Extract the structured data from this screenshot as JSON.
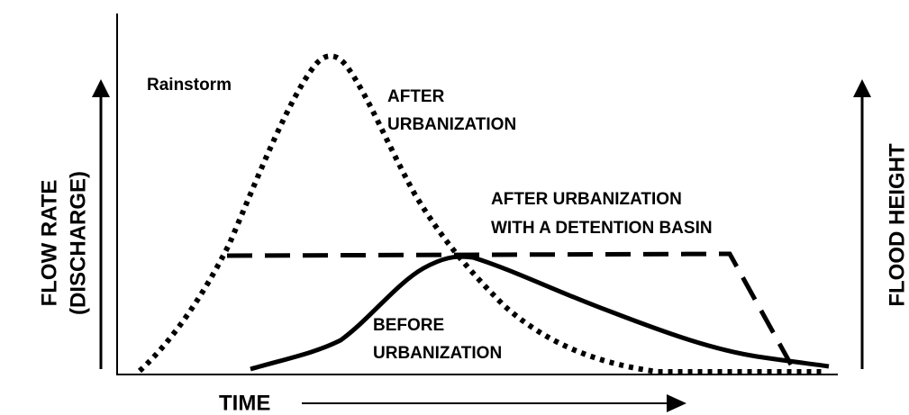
{
  "labels": {
    "rainstorm": "Rainstorm",
    "after_urbanization": [
      "AFTER",
      "URBANIZATION"
    ],
    "detention_basin": [
      "AFTER URBANIZATION",
      "WITH A DETENTION BASIN"
    ],
    "before_urbanization": [
      "BEFORE",
      "URBANIZATION"
    ],
    "y_axis_left": [
      "FLOW RATE",
      "(DISCHARGE)"
    ],
    "y_axis_right": "FLOOD HEIGHT",
    "x_axis": "TIME"
  }
}
